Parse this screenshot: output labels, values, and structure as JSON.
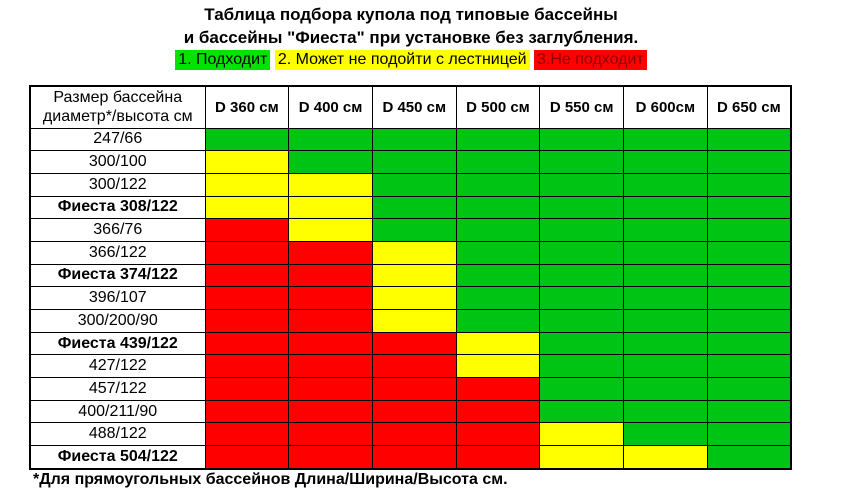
{
  "page": {
    "title_line1": "Таблица подбора купола под типовые бассейны",
    "title_line2": "и бассейны \"Фиеста\" при установке без заглубления.",
    "footnote": "*Для прямоугольных бассейнов Длина/Ширина/Высота см."
  },
  "legend": {
    "items": [
      {
        "label": "1. Подходит",
        "bg": "#00e400",
        "fg": "#000000"
      },
      {
        "label": "2. Может не подойти с лестницей",
        "bg": "#ffff00",
        "fg": "#000000"
      },
      {
        "label": "3.Не подходит",
        "bg": "#ff0000",
        "fg": "#8b0000"
      }
    ]
  },
  "colors": {
    "g": "#00c414",
    "y": "#ffff00",
    "r": "#ff0000"
  },
  "table": {
    "corner": {
      "line1": "Размер бассейна",
      "line2": "диаметр*/высота см"
    },
    "columns": [
      "D 360 см",
      "D 400 см",
      "D 450 см",
      "D 500 см",
      "D 550 см",
      "D 600см",
      "D 650 см"
    ],
    "rows": [
      {
        "label": "247/66",
        "bold": false,
        "cells": [
          "g",
          "g",
          "g",
          "g",
          "g",
          "g",
          "g"
        ]
      },
      {
        "label": "300/100",
        "bold": false,
        "cells": [
          "y",
          "g",
          "g",
          "g",
          "g",
          "g",
          "g"
        ]
      },
      {
        "label": "300/122",
        "bold": false,
        "cells": [
          "y",
          "y",
          "g",
          "g",
          "g",
          "g",
          "g"
        ]
      },
      {
        "label": "Фиеста 308/122",
        "bold": true,
        "cells": [
          "y",
          "y",
          "g",
          "g",
          "g",
          "g",
          "g"
        ]
      },
      {
        "label": "366/76",
        "bold": false,
        "cells": [
          "r",
          "y",
          "g",
          "g",
          "g",
          "g",
          "g"
        ]
      },
      {
        "label": "366/122",
        "bold": false,
        "cells": [
          "r",
          "r",
          "y",
          "g",
          "g",
          "g",
          "g"
        ]
      },
      {
        "label": "Фиеста 374/122",
        "bold": true,
        "cells": [
          "r",
          "r",
          "y",
          "g",
          "g",
          "g",
          "g"
        ]
      },
      {
        "label": "396/107",
        "bold": false,
        "cells": [
          "r",
          "r",
          "y",
          "g",
          "g",
          "g",
          "g"
        ]
      },
      {
        "label": "300/200/90",
        "bold": false,
        "cells": [
          "r",
          "r",
          "y",
          "g",
          "g",
          "g",
          "g"
        ]
      },
      {
        "label": "Фиеста 439/122",
        "bold": true,
        "cells": [
          "r",
          "r",
          "r",
          "y",
          "g",
          "g",
          "g"
        ]
      },
      {
        "label": "427/122",
        "bold": false,
        "cells": [
          "r",
          "r",
          "r",
          "y",
          "g",
          "g",
          "g"
        ]
      },
      {
        "label": "457/122",
        "bold": false,
        "cells": [
          "r",
          "r",
          "r",
          "r",
          "g",
          "g",
          "g"
        ]
      },
      {
        "label": "400/211/90",
        "bold": false,
        "cells": [
          "r",
          "r",
          "r",
          "r",
          "g",
          "g",
          "g"
        ]
      },
      {
        "label": "488/122",
        "bold": false,
        "cells": [
          "r",
          "r",
          "r",
          "r",
          "y",
          "g",
          "g"
        ]
      },
      {
        "label": "Фиеста 504/122",
        "bold": true,
        "cells": [
          "r",
          "r",
          "r",
          "r",
          "y",
          "y",
          "g"
        ]
      }
    ]
  },
  "chart_data": {
    "type": "heatmap",
    "title": "Таблица подбора купола под типовые бассейны и бассейны \"Фиеста\" при установке без заглубления.",
    "x_categories": [
      "D 360 см",
      "D 400 см",
      "D 450 см",
      "D 500 см",
      "D 550 см",
      "D 600см",
      "D 650 см"
    ],
    "y_categories": [
      "247/66",
      "300/100",
      "300/122",
      "Фиеста 308/122",
      "366/76",
      "366/122",
      "Фиеста 374/122",
      "396/107",
      "300/200/90",
      "Фиеста 439/122",
      "427/122",
      "457/122",
      "400/211/90",
      "488/122",
      "Фиеста 504/122"
    ],
    "values": [
      [
        1,
        1,
        1,
        1,
        1,
        1,
        1
      ],
      [
        2,
        1,
        1,
        1,
        1,
        1,
        1
      ],
      [
        2,
        2,
        1,
        1,
        1,
        1,
        1
      ],
      [
        2,
        2,
        1,
        1,
        1,
        1,
        1
      ],
      [
        3,
        2,
        1,
        1,
        1,
        1,
        1
      ],
      [
        3,
        3,
        2,
        1,
        1,
        1,
        1
      ],
      [
        3,
        3,
        2,
        1,
        1,
        1,
        1
      ],
      [
        3,
        3,
        2,
        1,
        1,
        1,
        1
      ],
      [
        3,
        3,
        2,
        1,
        1,
        1,
        1
      ],
      [
        3,
        3,
        3,
        2,
        1,
        1,
        1
      ],
      [
        3,
        3,
        3,
        2,
        1,
        1,
        1
      ],
      [
        3,
        3,
        3,
        3,
        1,
        1,
        1
      ],
      [
        3,
        3,
        3,
        3,
        1,
        1,
        1
      ],
      [
        3,
        3,
        3,
        3,
        2,
        1,
        1
      ],
      [
        3,
        3,
        3,
        3,
        2,
        2,
        1
      ]
    ],
    "value_legend": {
      "1": "Подходит",
      "2": "Может не подойти с лестницей",
      "3": "Не подходит"
    },
    "cell_colors": {
      "1": "#00c414",
      "2": "#ffff00",
      "3": "#ff0000"
    },
    "footnote": "*Для прямоугольных бассейнов Длина/Ширина/Высота см."
  }
}
